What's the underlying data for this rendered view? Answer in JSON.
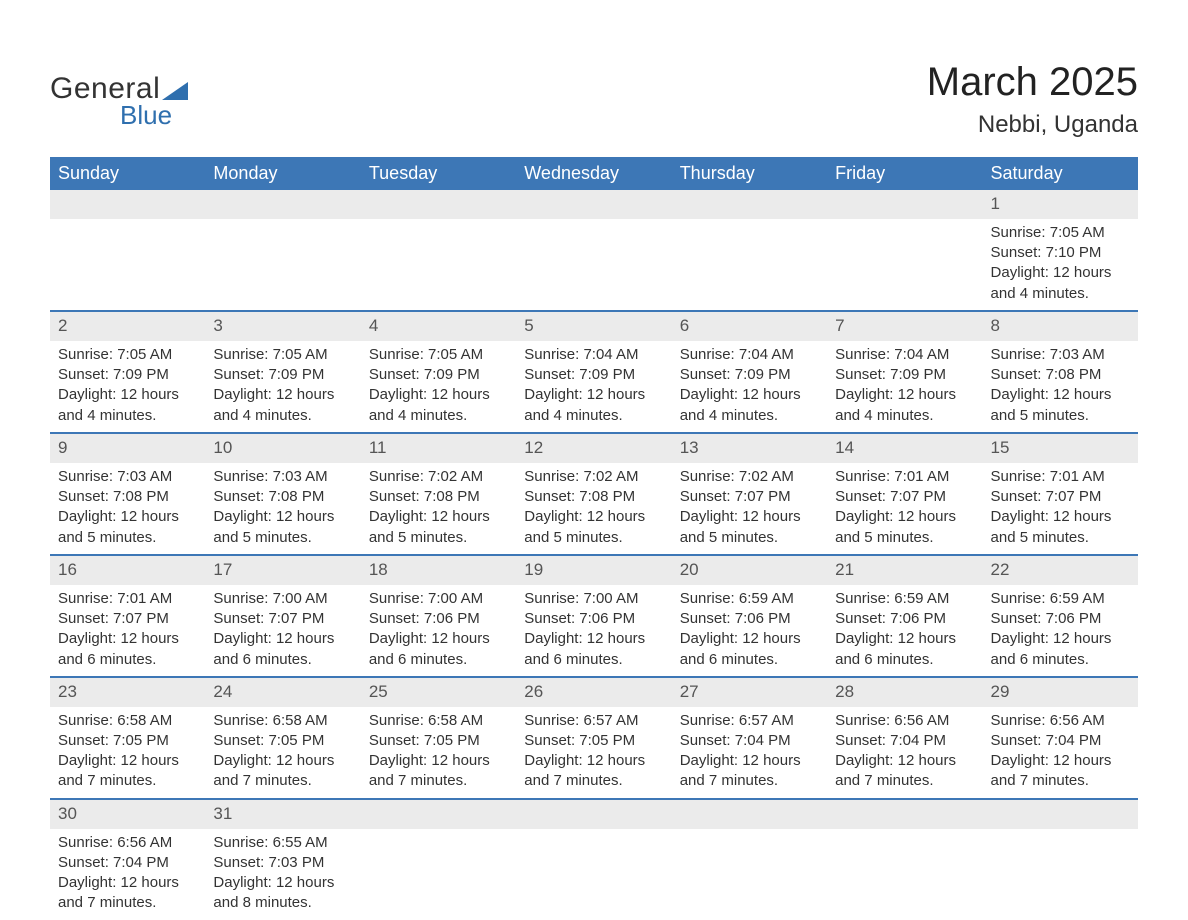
{
  "logo": {
    "line1": "General",
    "line2": "Blue"
  },
  "title": "March 2025",
  "location": "Nebbi, Uganda",
  "colors": {
    "header_bg": "#3d77b6",
    "header_text": "#ffffff",
    "daynum_bg": "#ebebeb",
    "row_divider": "#3d77b6",
    "body_text": "#333333",
    "brand_blue": "#2f6fae",
    "background": "#ffffff"
  },
  "typography": {
    "title_fontsize": 40,
    "location_fontsize": 24,
    "header_fontsize": 18,
    "cell_fontsize": 15,
    "daynum_fontsize": 17,
    "logo_fontsize": 30
  },
  "day_headers": [
    "Sunday",
    "Monday",
    "Tuesday",
    "Wednesday",
    "Thursday",
    "Friday",
    "Saturday"
  ],
  "labels": {
    "sunrise": "Sunrise: ",
    "sunset": "Sunset: ",
    "daylight": "Daylight: "
  },
  "weeks": [
    [
      null,
      null,
      null,
      null,
      null,
      null,
      {
        "n": "1",
        "sr": "7:05 AM",
        "ss": "7:10 PM",
        "dl": "12 hours and 4 minutes."
      }
    ],
    [
      {
        "n": "2",
        "sr": "7:05 AM",
        "ss": "7:09 PM",
        "dl": "12 hours and 4 minutes."
      },
      {
        "n": "3",
        "sr": "7:05 AM",
        "ss": "7:09 PM",
        "dl": "12 hours and 4 minutes."
      },
      {
        "n": "4",
        "sr": "7:05 AM",
        "ss": "7:09 PM",
        "dl": "12 hours and 4 minutes."
      },
      {
        "n": "5",
        "sr": "7:04 AM",
        "ss": "7:09 PM",
        "dl": "12 hours and 4 minutes."
      },
      {
        "n": "6",
        "sr": "7:04 AM",
        "ss": "7:09 PM",
        "dl": "12 hours and 4 minutes."
      },
      {
        "n": "7",
        "sr": "7:04 AM",
        "ss": "7:09 PM",
        "dl": "12 hours and 4 minutes."
      },
      {
        "n": "8",
        "sr": "7:03 AM",
        "ss": "7:08 PM",
        "dl": "12 hours and 5 minutes."
      }
    ],
    [
      {
        "n": "9",
        "sr": "7:03 AM",
        "ss": "7:08 PM",
        "dl": "12 hours and 5 minutes."
      },
      {
        "n": "10",
        "sr": "7:03 AM",
        "ss": "7:08 PM",
        "dl": "12 hours and 5 minutes."
      },
      {
        "n": "11",
        "sr": "7:02 AM",
        "ss": "7:08 PM",
        "dl": "12 hours and 5 minutes."
      },
      {
        "n": "12",
        "sr": "7:02 AM",
        "ss": "7:08 PM",
        "dl": "12 hours and 5 minutes."
      },
      {
        "n": "13",
        "sr": "7:02 AM",
        "ss": "7:07 PM",
        "dl": "12 hours and 5 minutes."
      },
      {
        "n": "14",
        "sr": "7:01 AM",
        "ss": "7:07 PM",
        "dl": "12 hours and 5 minutes."
      },
      {
        "n": "15",
        "sr": "7:01 AM",
        "ss": "7:07 PM",
        "dl": "12 hours and 5 minutes."
      }
    ],
    [
      {
        "n": "16",
        "sr": "7:01 AM",
        "ss": "7:07 PM",
        "dl": "12 hours and 6 minutes."
      },
      {
        "n": "17",
        "sr": "7:00 AM",
        "ss": "7:07 PM",
        "dl": "12 hours and 6 minutes."
      },
      {
        "n": "18",
        "sr": "7:00 AM",
        "ss": "7:06 PM",
        "dl": "12 hours and 6 minutes."
      },
      {
        "n": "19",
        "sr": "7:00 AM",
        "ss": "7:06 PM",
        "dl": "12 hours and 6 minutes."
      },
      {
        "n": "20",
        "sr": "6:59 AM",
        "ss": "7:06 PM",
        "dl": "12 hours and 6 minutes."
      },
      {
        "n": "21",
        "sr": "6:59 AM",
        "ss": "7:06 PM",
        "dl": "12 hours and 6 minutes."
      },
      {
        "n": "22",
        "sr": "6:59 AM",
        "ss": "7:06 PM",
        "dl": "12 hours and 6 minutes."
      }
    ],
    [
      {
        "n": "23",
        "sr": "6:58 AM",
        "ss": "7:05 PM",
        "dl": "12 hours and 7 minutes."
      },
      {
        "n": "24",
        "sr": "6:58 AM",
        "ss": "7:05 PM",
        "dl": "12 hours and 7 minutes."
      },
      {
        "n": "25",
        "sr": "6:58 AM",
        "ss": "7:05 PM",
        "dl": "12 hours and 7 minutes."
      },
      {
        "n": "26",
        "sr": "6:57 AM",
        "ss": "7:05 PM",
        "dl": "12 hours and 7 minutes."
      },
      {
        "n": "27",
        "sr": "6:57 AM",
        "ss": "7:04 PM",
        "dl": "12 hours and 7 minutes."
      },
      {
        "n": "28",
        "sr": "6:56 AM",
        "ss": "7:04 PM",
        "dl": "12 hours and 7 minutes."
      },
      {
        "n": "29",
        "sr": "6:56 AM",
        "ss": "7:04 PM",
        "dl": "12 hours and 7 minutes."
      }
    ],
    [
      {
        "n": "30",
        "sr": "6:56 AM",
        "ss": "7:04 PM",
        "dl": "12 hours and 7 minutes."
      },
      {
        "n": "31",
        "sr": "6:55 AM",
        "ss": "7:03 PM",
        "dl": "12 hours and 8 minutes."
      },
      null,
      null,
      null,
      null,
      null
    ]
  ]
}
